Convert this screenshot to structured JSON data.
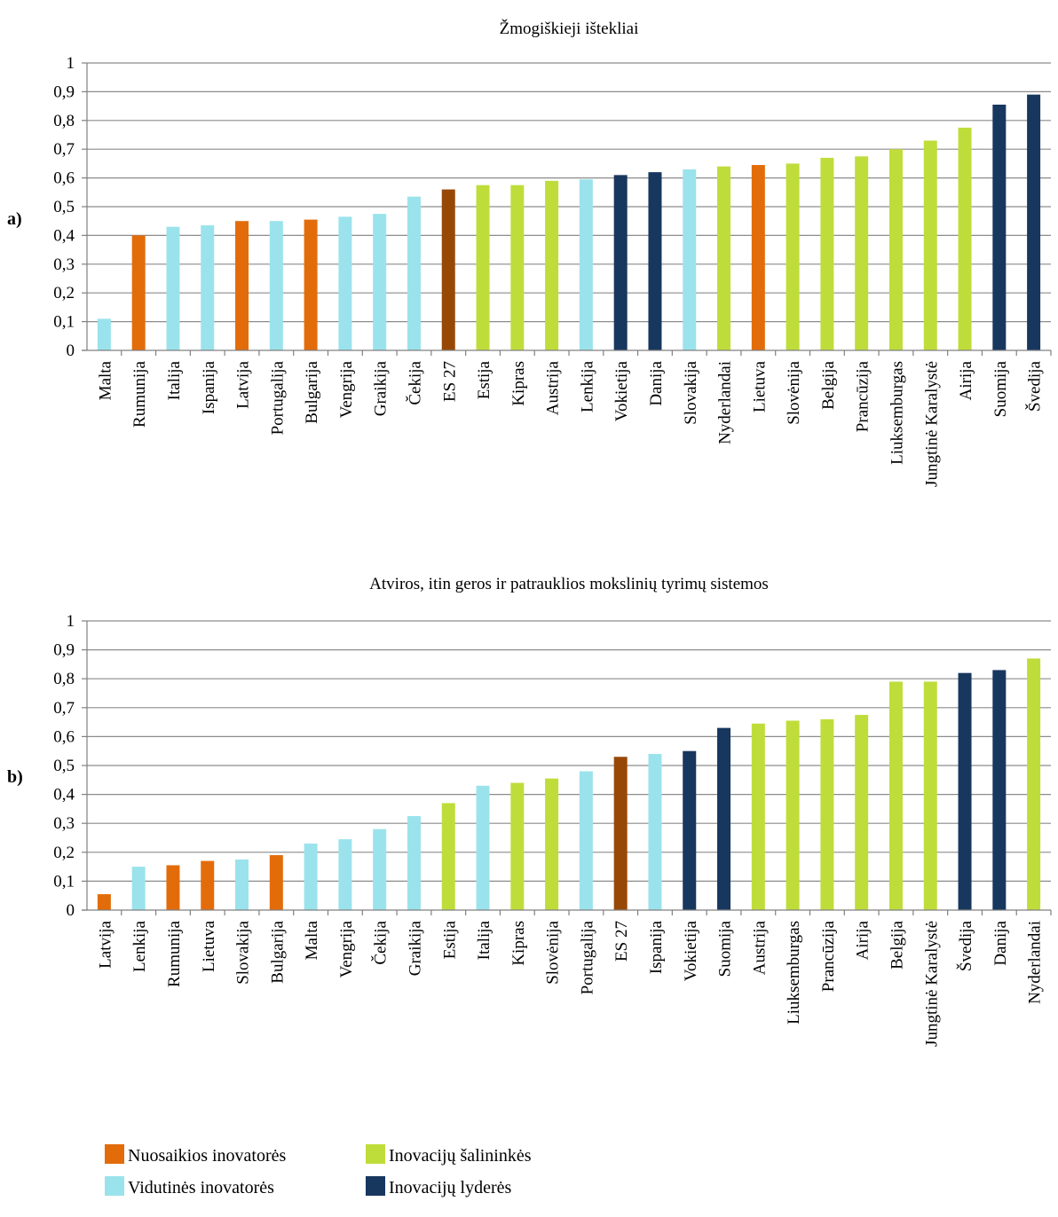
{
  "colors": {
    "nuosaikios": "#E36C0A",
    "vidutines": "#9BE3EC",
    "salininkes": "#BFDD3A",
    "lyderes": "#17375E",
    "es27": "#984806"
  },
  "legend": [
    {
      "key": "nuosaikios",
      "label": "Nuosaikios inovatorės"
    },
    {
      "key": "salininkes",
      "label": "Inovacijų šalininkės"
    },
    {
      "key": "vidutines",
      "label": "Vidutinės inovatorės"
    },
    {
      "key": "lyderes",
      "label": "Inovacijų lyderės"
    }
  ],
  "chart_data": [
    {
      "type": "bar",
      "panel_label": "a)",
      "title": "Žmogiškieji ištekliai",
      "ylim": [
        0,
        1
      ],
      "yticks": [
        "0",
        "0,1",
        "0,2",
        "0,3",
        "0,4",
        "0,5",
        "0,6",
        "0,7",
        "0,8",
        "0,9",
        "1"
      ],
      "grid": true,
      "categories": [
        "Malta",
        "Rumunija",
        "Italija",
        "Ispanija",
        "Latvija",
        "Portugalija",
        "Bulgarija",
        "Vengrija",
        "Graikija",
        "Čekija",
        "ES 27",
        "Estija",
        "Kipras",
        "Austrija",
        "Lenkija",
        "Vokietija",
        "Danija",
        "Slovakija",
        "Nyderlandai",
        "Lietuva",
        "Slovėnija",
        "Belgija",
        "Prancūzija",
        "Liuksemburgas",
        "Jungtinė Karalystė",
        "Airija",
        "Suomija",
        "Švedija"
      ],
      "values": [
        0.11,
        0.4,
        0.43,
        0.435,
        0.45,
        0.45,
        0.455,
        0.465,
        0.475,
        0.535,
        0.56,
        0.575,
        0.575,
        0.59,
        0.595,
        0.61,
        0.62,
        0.63,
        0.64,
        0.645,
        0.65,
        0.67,
        0.675,
        0.7,
        0.73,
        0.775,
        0.855,
        0.89
      ],
      "groups": [
        "vidutines",
        "nuosaikios",
        "vidutines",
        "vidutines",
        "nuosaikios",
        "vidutines",
        "nuosaikios",
        "vidutines",
        "vidutines",
        "vidutines",
        "es27",
        "salininkes",
        "salininkes",
        "salininkes",
        "vidutines",
        "lyderes",
        "lyderes",
        "vidutines",
        "salininkes",
        "nuosaikios",
        "salininkes",
        "salininkes",
        "salininkes",
        "salininkes",
        "salininkes",
        "salininkes",
        "lyderes",
        "lyderes"
      ]
    },
    {
      "type": "bar",
      "panel_label": "b)",
      "title": "Atviros, itin geros ir patrauklios mokslinių tyrimų sistemos",
      "ylim": [
        0,
        1
      ],
      "yticks": [
        "0",
        "0,1",
        "0,2",
        "0,3",
        "0,4",
        "0,5",
        "0,6",
        "0,7",
        "0,8",
        "0,9",
        "1"
      ],
      "grid": true,
      "categories": [
        "Latvija",
        "Lenkija",
        "Rumunija",
        "Lietuva",
        "Slovakija",
        "Bulgarija",
        "Malta",
        "Vengrija",
        "Čekija",
        "Graikija",
        "Estija",
        "Italija",
        "Kipras",
        "Slovėnija",
        "Portugalija",
        "ES 27",
        "Ispanija",
        "Vokietija",
        "Suomija",
        "Austrija",
        "Liuksemburgas",
        "Prancūzija",
        "Airija",
        "Belgija",
        "Jungtinė Karalystė",
        "Švedija",
        "Danija",
        "Nyderlandai"
      ],
      "values": [
        0.055,
        0.15,
        0.155,
        0.17,
        0.175,
        0.19,
        0.23,
        0.245,
        0.28,
        0.325,
        0.37,
        0.43,
        0.44,
        0.455,
        0.48,
        0.53,
        0.54,
        0.55,
        0.63,
        0.645,
        0.655,
        0.66,
        0.675,
        0.79,
        0.79,
        0.82,
        0.83,
        0.87
      ],
      "groups": [
        "nuosaikios",
        "vidutines",
        "nuosaikios",
        "nuosaikios",
        "vidutines",
        "nuosaikios",
        "vidutines",
        "vidutines",
        "vidutines",
        "vidutines",
        "salininkes",
        "vidutines",
        "salininkes",
        "salininkes",
        "vidutines",
        "es27",
        "vidutines",
        "lyderes",
        "lyderes",
        "salininkes",
        "salininkes",
        "salininkes",
        "salininkes",
        "salininkes",
        "salininkes",
        "lyderes",
        "lyderes",
        "salininkes"
      ]
    }
  ]
}
